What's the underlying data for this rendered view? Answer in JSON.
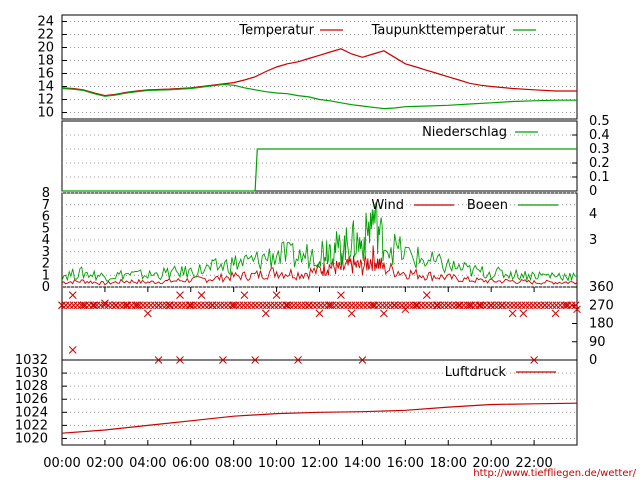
{
  "chart_data": [
    {
      "type": "line",
      "yticks": [
        10,
        12,
        14,
        16,
        18,
        20,
        22,
        24
      ],
      "ylim": [
        9,
        25
      ],
      "legend_position": "top-right",
      "series": [
        {
          "name": "Temperatur",
          "color": "#cc0000",
          "points": [
            [
              0,
              13.8
            ],
            [
              0.5,
              13.7
            ],
            [
              1,
              13.5
            ],
            [
              1.5,
              13.0
            ],
            [
              2,
              12.6
            ],
            [
              2.5,
              12.8
            ],
            [
              3,
              13.1
            ],
            [
              3.5,
              13.3
            ],
            [
              4,
              13.5
            ],
            [
              5,
              13.6
            ],
            [
              6,
              13.8
            ],
            [
              7,
              14.2
            ],
            [
              8,
              14.6
            ],
            [
              8.5,
              15.0
            ],
            [
              9,
              15.5
            ],
            [
              9.5,
              16.3
            ],
            [
              10,
              17.0
            ],
            [
              10.5,
              17.5
            ],
            [
              11,
              17.8
            ],
            [
              11.5,
              18.3
            ],
            [
              12,
              18.8
            ],
            [
              12.5,
              19.3
            ],
            [
              13,
              19.8
            ],
            [
              13.5,
              19.0
            ],
            [
              14,
              18.5
            ],
            [
              14.5,
              19.0
            ],
            [
              15,
              19.5
            ],
            [
              15.5,
              18.5
            ],
            [
              16,
              17.5
            ],
            [
              16.5,
              17.0
            ],
            [
              17,
              16.5
            ],
            [
              17.5,
              16.0
            ],
            [
              18,
              15.5
            ],
            [
              18.5,
              15.0
            ],
            [
              19,
              14.5
            ],
            [
              19.5,
              14.2
            ],
            [
              20,
              14.0
            ],
            [
              21,
              13.7
            ],
            [
              22,
              13.5
            ],
            [
              23,
              13.3
            ],
            [
              24,
              13.3
            ]
          ]
        },
        {
          "name": "Taupunkttemperatur",
          "color": "#00a000",
          "points": [
            [
              0,
              13.7
            ],
            [
              0.5,
              13.6
            ],
            [
              1,
              13.4
            ],
            [
              1.5,
              12.9
            ],
            [
              2,
              12.5
            ],
            [
              2.5,
              12.7
            ],
            [
              3,
              13.0
            ],
            [
              3.5,
              13.2
            ],
            [
              4,
              13.4
            ],
            [
              5,
              13.5
            ],
            [
              6,
              13.7
            ],
            [
              7,
              14.1
            ],
            [
              7.5,
              14.3
            ],
            [
              8,
              14.2
            ],
            [
              8.5,
              13.8
            ],
            [
              9,
              13.5
            ],
            [
              9.5,
              13.2
            ],
            [
              10,
              13.0
            ],
            [
              10.5,
              12.9
            ],
            [
              11,
              12.6
            ],
            [
              11.5,
              12.4
            ],
            [
              12,
              12.0
            ],
            [
              12.5,
              11.8
            ],
            [
              13,
              11.5
            ],
            [
              13.5,
              11.2
            ],
            [
              14,
              11.0
            ],
            [
              14.5,
              10.8
            ],
            [
              15,
              10.6
            ],
            [
              15.5,
              10.7
            ],
            [
              16,
              10.9
            ],
            [
              17,
              11.0
            ],
            [
              18,
              11.1
            ],
            [
              19,
              11.3
            ],
            [
              20,
              11.5
            ],
            [
              21,
              11.7
            ],
            [
              22,
              11.8
            ],
            [
              23,
              11.9
            ],
            [
              24,
              11.9
            ]
          ]
        }
      ]
    },
    {
      "type": "line",
      "yticks_right": [
        "0",
        "0.1",
        "0.2",
        "0.3",
        "0.4",
        "0.5"
      ],
      "ylim": [
        0,
        0.5
      ],
      "legend_position": "top-right",
      "series": [
        {
          "name": "Niederschlag",
          "color": "#00a000",
          "points": [
            [
              0,
              0
            ],
            [
              9,
              0
            ],
            [
              9.1,
              0.3
            ],
            [
              24,
              0.3
            ]
          ]
        }
      ]
    },
    {
      "type": "line",
      "yticks_left": [
        "0",
        "1",
        "2",
        "3",
        "4",
        "5",
        "6",
        "7",
        "8"
      ],
      "yticks_right": [
        "3",
        "4"
      ],
      "ylim": [
        0,
        8
      ],
      "legend_position": "top-right",
      "series": [
        {
          "name": "Wind",
          "color": "#cc0000",
          "points": [
            [
              0,
              0.4
            ],
            [
              1,
              0.5
            ],
            [
              2,
              0.3
            ],
            [
              3,
              0.5
            ],
            [
              4,
              0.4
            ],
            [
              5,
              0.5
            ],
            [
              6,
              0.6
            ],
            [
              7,
              0.7
            ],
            [
              8,
              0.9
            ],
            [
              9,
              1.0
            ],
            [
              10,
              1.3
            ],
            [
              11,
              1.1
            ],
            [
              12,
              1.4
            ],
            [
              12.5,
              1.8
            ],
            [
              13,
              1.5
            ],
            [
              13.5,
              1.9
            ],
            [
              14,
              1.7
            ],
            [
              14.5,
              2.5
            ],
            [
              15,
              1.6
            ],
            [
              16,
              1.2
            ],
            [
              17,
              1.0
            ],
            [
              18,
              0.8
            ],
            [
              19,
              0.6
            ],
            [
              20,
              0.5
            ],
            [
              21,
              0.5
            ],
            [
              22,
              0.4
            ],
            [
              23,
              0.4
            ],
            [
              24,
              0.4
            ]
          ]
        },
        {
          "name": "Boeen",
          "color": "#00a000",
          "points": [
            [
              0,
              1.0
            ],
            [
              1,
              1.2
            ],
            [
              2,
              0.9
            ],
            [
              3,
              1.1
            ],
            [
              4,
              1.0
            ],
            [
              5,
              1.2
            ],
            [
              6,
              1.3
            ],
            [
              7,
              1.6
            ],
            [
              8,
              2.0
            ],
            [
              9,
              2.2
            ],
            [
              10,
              2.8
            ],
            [
              11,
              2.5
            ],
            [
              12,
              3.0
            ],
            [
              12.5,
              3.5
            ],
            [
              13,
              3.2
            ],
            [
              13.5,
              4.0
            ],
            [
              14,
              3.6
            ],
            [
              14.5,
              6.0
            ],
            [
              15,
              3.8
            ],
            [
              16,
              2.8
            ],
            [
              17,
              2.2
            ],
            [
              18,
              1.8
            ],
            [
              19,
              1.4
            ],
            [
              20,
              1.2
            ],
            [
              21,
              1.1
            ],
            [
              22,
              1.0
            ],
            [
              23,
              1.0
            ],
            [
              24,
              0.9
            ]
          ]
        }
      ]
    },
    {
      "type": "scatter",
      "yticks_right": [
        "0",
        "90",
        "180",
        "270",
        "360"
      ],
      "ylim": [
        0,
        360
      ],
      "series": [
        {
          "name": "",
          "color": "#cc0000",
          "marker": "x",
          "points": [
            [
              0,
              270
            ],
            [
              0.5,
              320
            ],
            [
              1,
              270
            ],
            [
              1.5,
              270
            ],
            [
              2,
              280
            ],
            [
              2.5,
              270
            ],
            [
              3,
              270
            ],
            [
              3.5,
              270
            ],
            [
              4,
              230
            ],
            [
              4.5,
              270
            ],
            [
              5,
              270
            ],
            [
              5.5,
              320
            ],
            [
              6,
              270
            ],
            [
              6.5,
              320
            ],
            [
              7,
              270
            ],
            [
              7.5,
              0
            ],
            [
              8,
              270
            ],
            [
              8.5,
              320
            ],
            [
              9,
              0
            ],
            [
              9.5,
              230
            ],
            [
              10,
              320
            ],
            [
              10.5,
              270
            ],
            [
              11,
              0
            ],
            [
              11.5,
              270
            ],
            [
              12,
              230
            ],
            [
              12.5,
              270
            ],
            [
              13,
              320
            ],
            [
              13.5,
              230
            ],
            [
              14,
              0
            ],
            [
              14.5,
              270
            ],
            [
              15,
              230
            ],
            [
              15.5,
              270
            ],
            [
              16,
              250
            ],
            [
              16.5,
              270
            ],
            [
              17,
              320
            ],
            [
              17.5,
              270
            ],
            [
              18,
              270
            ],
            [
              18.5,
              270
            ],
            [
              19,
              270
            ],
            [
              19.5,
              270
            ],
            [
              20,
              270
            ],
            [
              20.5,
              270
            ],
            [
              21,
              230
            ],
            [
              21.5,
              230
            ],
            [
              22,
              0
            ],
            [
              22.5,
              270
            ],
            [
              23,
              230
            ],
            [
              23.5,
              270
            ],
            [
              24,
              250
            ],
            [
              0.5,
              50
            ],
            [
              4.5,
              0
            ],
            [
              5.5,
              0
            ]
          ]
        }
      ]
    },
    {
      "type": "line",
      "yticks": [
        "1020",
        "1022",
        "1024",
        "1026",
        "1028",
        "1030",
        "1032"
      ],
      "ylim": [
        1019,
        1032
      ],
      "xticks": [
        "00:00",
        "02:00",
        "04:00",
        "06:00",
        "08:00",
        "10:00",
        "12:00",
        "14:00",
        "16:00",
        "18:00",
        "20:00",
        "22:00"
      ],
      "legend_position": "top-right",
      "series": [
        {
          "name": "Luftdruck",
          "color": "#cc0000",
          "points": [
            [
              0,
              1020.8
            ],
            [
              2,
              1021.3
            ],
            [
              4,
              1022.0
            ],
            [
              6,
              1022.7
            ],
            [
              8,
              1023.4
            ],
            [
              10,
              1023.8
            ],
            [
              12,
              1024.0
            ],
            [
              14,
              1024.1
            ],
            [
              16,
              1024.3
            ],
            [
              18,
              1024.8
            ],
            [
              20,
              1025.2
            ],
            [
              22,
              1025.3
            ],
            [
              24,
              1025.4
            ]
          ]
        }
      ]
    }
  ],
  "footer": {
    "url": "http://www.tiefﬂiegen.de/wetter/"
  }
}
